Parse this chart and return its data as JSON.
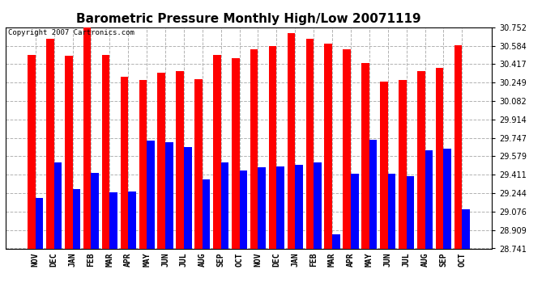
{
  "title": "Barometric Pressure Monthly High/Low 20071119",
  "copyright": "Copyright 2007 Cartronics.com",
  "months": [
    "NOV",
    "DEC",
    "JAN",
    "FEB",
    "MAR",
    "APR",
    "MAY",
    "JUN",
    "JUL",
    "AUG",
    "SEP",
    "OCT",
    "NOV",
    "DEC",
    "JAN",
    "FEB",
    "MAR",
    "APR",
    "MAY",
    "JUN",
    "JUL",
    "AUG",
    "SEP",
    "OCT"
  ],
  "highs": [
    30.5,
    30.65,
    30.49,
    30.76,
    30.5,
    30.3,
    30.27,
    30.34,
    30.35,
    30.28,
    30.5,
    30.47,
    30.55,
    30.58,
    30.7,
    30.65,
    30.6,
    30.55,
    30.43,
    30.26,
    30.27,
    30.35,
    30.38,
    30.59
  ],
  "lows": [
    29.2,
    29.52,
    29.28,
    29.43,
    29.25,
    29.26,
    29.72,
    29.71,
    29.66,
    29.37,
    29.52,
    29.45,
    29.48,
    29.49,
    29.5,
    29.52,
    28.87,
    29.42,
    29.73,
    29.42,
    29.4,
    29.63,
    29.65,
    29.1
  ],
  "ylim_min": 28.741,
  "ylim_max": 30.752,
  "yticks": [
    28.741,
    28.909,
    29.076,
    29.244,
    29.411,
    29.579,
    29.747,
    29.914,
    30.082,
    30.249,
    30.417,
    30.584,
    30.752
  ],
  "high_color": "#FF0000",
  "low_color": "#0000FF",
  "bg_color": "#FFFFFF",
  "plot_bg_color": "#FFFFFF",
  "grid_color": "#AAAAAA",
  "title_fontsize": 11,
  "tick_fontsize": 7,
  "copyright_fontsize": 6.5
}
